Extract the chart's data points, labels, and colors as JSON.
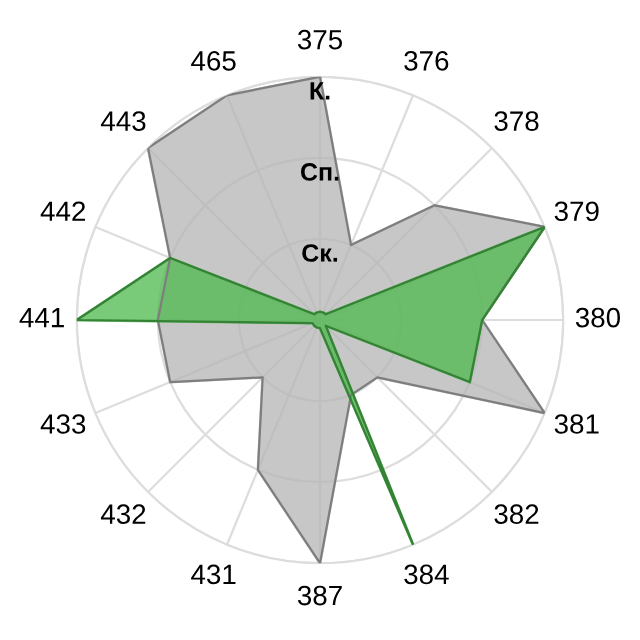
{
  "chart_data": {
    "type": "radar",
    "categories": [
      "375",
      "376",
      "378",
      "379",
      "380",
      "381",
      "382",
      "384",
      "387",
      "431",
      "432",
      "433",
      "441",
      "442",
      "443",
      "465"
    ],
    "ylim": [
      0,
      3
    ],
    "yticks": [
      {
        "value": 1,
        "label": "Ск."
      },
      {
        "value": 2,
        "label": "Сп."
      },
      {
        "value": 3,
        "label": "К."
      }
    ],
    "grid": true,
    "series": [
      {
        "color": "#b4b4b4",
        "values": [
          3,
          1,
          2,
          3,
          2,
          3,
          1,
          1,
          3,
          2,
          1,
          2,
          2,
          2,
          3,
          3
        ]
      },
      {
        "color": "#4cb84c",
        "values": [
          0.1,
          0.1,
          0.1,
          3,
          2,
          2,
          0.1,
          3,
          0.1,
          0.1,
          0.1,
          0.1,
          3,
          2,
          0.1,
          0.1
        ]
      }
    ]
  }
}
